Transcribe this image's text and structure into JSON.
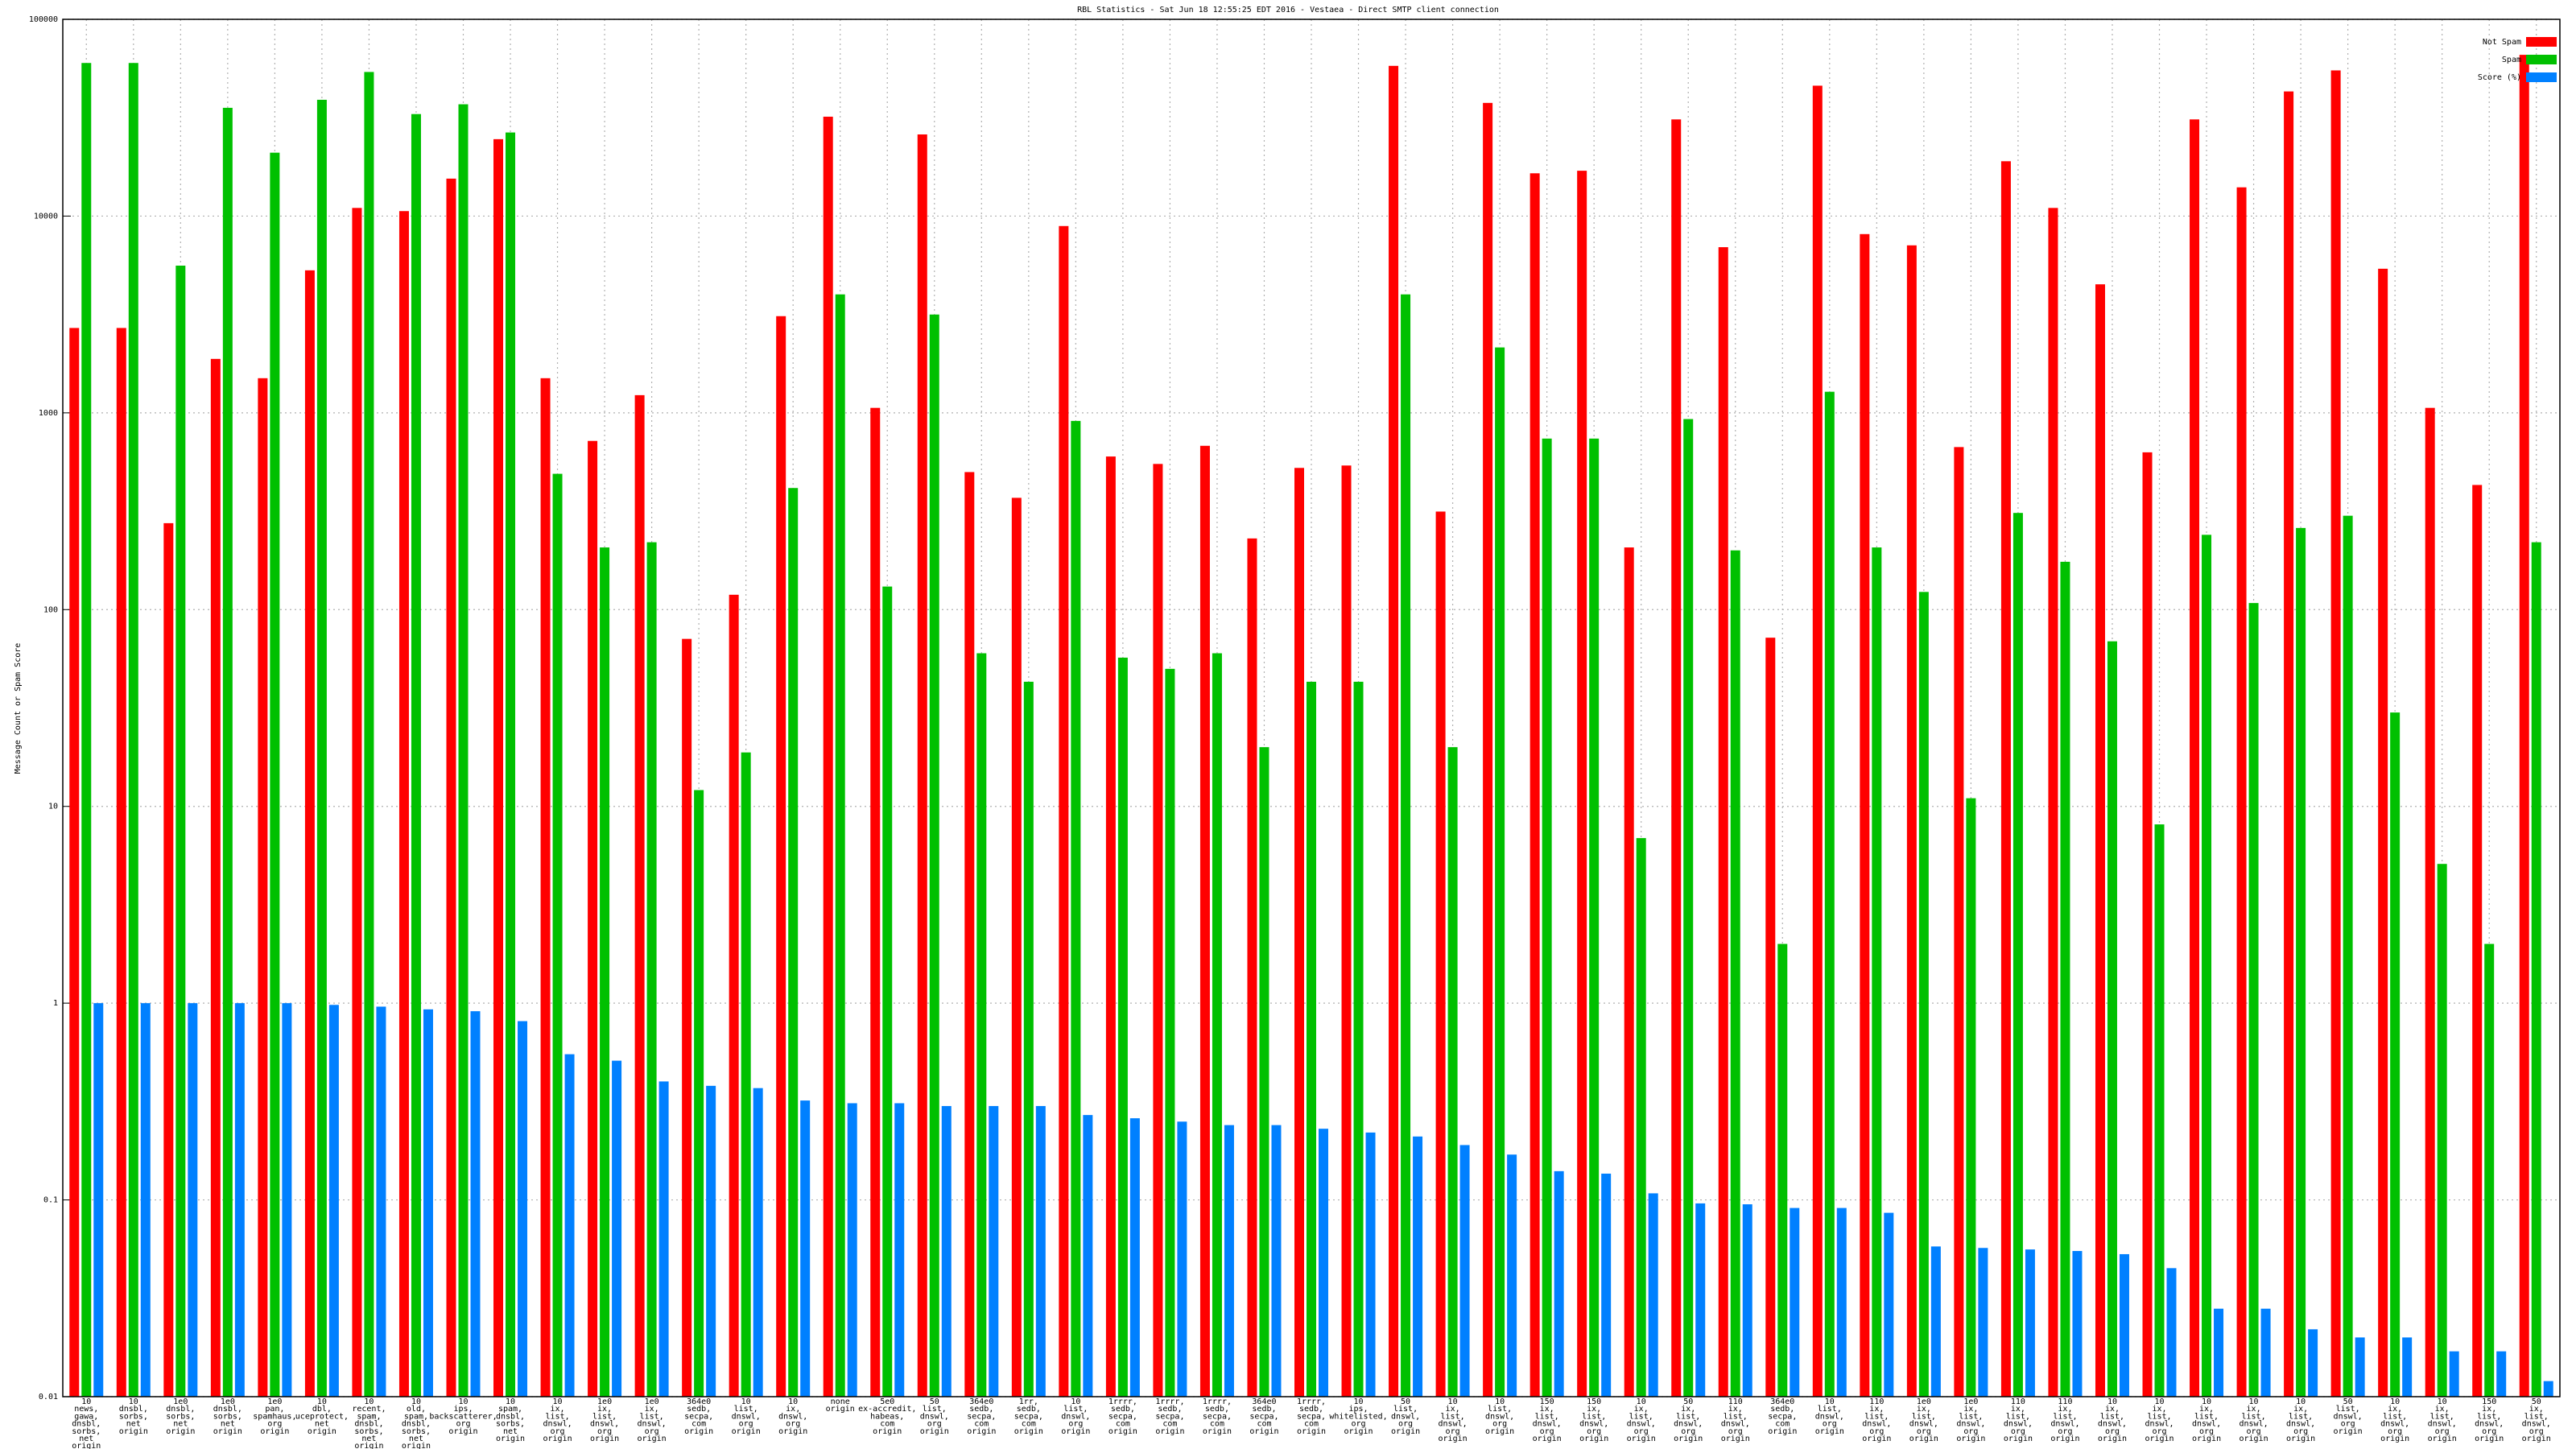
{
  "chart_data": {
    "type": "bar",
    "title": "RBL Statistics - Sat Jun 18 12:55:25 EDT 2016 - Vestaea - Direct SMTP client connection",
    "y_label": "Message Count or Spam Score",
    "log_scale": true,
    "grid": true,
    "legend_position": "top-right",
    "ylim": [
      0.01,
      100000
    ],
    "yticks": [
      100000,
      10000,
      1000,
      100,
      10,
      1,
      0.1,
      0.01
    ],
    "categories": [
      [
        "10",
        "news,",
        "gawa,",
        "dnsbl,",
        "sorbs,",
        "net",
        "origin"
      ],
      [
        "10",
        "dnsbl,",
        "sorbs,",
        "net",
        "origin"
      ],
      [
        "1e0",
        "dnsbl,",
        "sorbs,",
        "net",
        "origin"
      ],
      [
        "1e0",
        "dnsbl,",
        "sorbs,",
        "net",
        "origin"
      ],
      [
        "1e0",
        "pan,",
        "spamhaus,",
        "org",
        "origin"
      ],
      [
        "10",
        "dbl,",
        "uceprotect,",
        "net",
        "origin"
      ],
      [
        "10",
        "recent,",
        "spam,",
        "dnsbl,",
        "sorbs,",
        "net",
        "origin"
      ],
      [
        "10",
        "old,",
        "spam,",
        "dnsbl,",
        "sorbs,",
        "net",
        "origin"
      ],
      [
        "10",
        "ips,",
        "backscatterer,",
        "org",
        "origin"
      ],
      [
        "10",
        "spam,",
        "dnsbl,",
        "sorbs,",
        "net",
        "origin"
      ],
      [
        "10",
        "ix,",
        "list,",
        "dnswl,",
        "org",
        "origin"
      ],
      [
        "1e0",
        "ix,",
        "list,",
        "dnswl,",
        "org",
        "origin"
      ],
      [
        "1e0",
        "ix,",
        "list,",
        "dnswl,",
        "org",
        "origin"
      ],
      [
        "364e0",
        "sedb,",
        "secpa,",
        "com",
        "origin"
      ],
      [
        "10",
        "list,",
        "dnswl,",
        "org",
        "origin"
      ],
      [
        "10",
        "ix,",
        "dnswl,",
        "org",
        "origin"
      ],
      [
        "none",
        "origin"
      ],
      [
        "5e0",
        "ex-accredit,",
        "habeas,",
        "com",
        "origin"
      ],
      [
        "50",
        "list,",
        "dnswl,",
        "org",
        "origin"
      ],
      [
        "364e0",
        "sedb,",
        "secpa,",
        "com",
        "origin"
      ],
      [
        "1rr,",
        "sedb,",
        "secpa,",
        "com",
        "origin"
      ],
      [
        "10",
        "list,",
        "dnswl,",
        "org",
        "origin"
      ],
      [
        "1rrrr,",
        "sedb,",
        "secpa,",
        "com",
        "origin"
      ],
      [
        "1rrrr,",
        "sedb,",
        "secpa,",
        "com",
        "origin"
      ],
      [
        "1rrrr,",
        "sedb,",
        "secpa,",
        "com",
        "origin"
      ],
      [
        "364e0",
        "sedb,",
        "secpa,",
        "com",
        "origin"
      ],
      [
        "1rrrr,",
        "sedb,",
        "secpa,",
        "com",
        "origin"
      ],
      [
        "10",
        "ips,",
        "whitelisted,",
        "org",
        "origin"
      ],
      [
        "50",
        "list,",
        "dnswl,",
        "org",
        "origin"
      ],
      [
        "10",
        "ix,",
        "list,",
        "dnswl,",
        "org",
        "origin"
      ],
      [
        "10",
        "list,",
        "dnswl,",
        "org",
        "origin"
      ],
      [
        "150",
        "ix,",
        "list,",
        "dnswl,",
        "org",
        "origin"
      ],
      [
        "150",
        "ix,",
        "list,",
        "dnswl,",
        "org",
        "origin"
      ],
      [
        "10",
        "ix,",
        "list,",
        "dnswl,",
        "org",
        "origin"
      ],
      [
        "50",
        "ix,",
        "list,",
        "dnswl,",
        "org",
        "origin"
      ],
      [
        "110",
        "ix,",
        "list,",
        "dnswl,",
        "org",
        "origin"
      ],
      [
        "364e0",
        "sedb,",
        "secpa,",
        "com",
        "origin"
      ],
      [
        "10",
        "list,",
        "dnswl,",
        "org",
        "origin"
      ],
      [
        "110",
        "ix,",
        "list,",
        "dnswl,",
        "org",
        "origin"
      ],
      [
        "1e0",
        "ix,",
        "list,",
        "dnswl,",
        "org",
        "origin"
      ],
      [
        "1e0",
        "ix,",
        "list,",
        "dnswl,",
        "org",
        "origin"
      ],
      [
        "110",
        "ix,",
        "list,",
        "dnswl,",
        "org",
        "origin"
      ],
      [
        "110",
        "ix,",
        "list,",
        "dnswl,",
        "org",
        "origin"
      ],
      [
        "10",
        "ix,",
        "list,",
        "dnswl,",
        "org",
        "origin"
      ],
      [
        "10",
        "ix,",
        "list,",
        "dnswl,",
        "org",
        "origin"
      ],
      [
        "10",
        "ix,",
        "list,",
        "dnswl,",
        "org",
        "origin"
      ],
      [
        "10",
        "ix,",
        "list,",
        "dnswl,",
        "org",
        "origin"
      ],
      [
        "10",
        "ix,",
        "list,",
        "dnswl,",
        "org",
        "origin"
      ],
      [
        "50",
        "list,",
        "dnswl,",
        "org",
        "origin"
      ],
      [
        "10",
        "ix,",
        "list,",
        "dnswl,",
        "org",
        "origin"
      ],
      [
        "10",
        "ix,",
        "list,",
        "dnswl,",
        "org",
        "origin"
      ],
      [
        "150",
        "ix,",
        "list,",
        "dnswl,",
        "org",
        "origin"
      ],
      [
        "50",
        "ix,",
        "list,",
        "dnswl,",
        "org",
        "origin"
      ]
    ],
    "series": [
      {
        "name": "Not Spam",
        "color": "#ff0000",
        "values": [
          2700,
          2700,
          275,
          1880,
          1500,
          5300,
          11000,
          10600,
          15500,
          24600,
          1500,
          720,
          1230,
          71,
          119,
          3100,
          32000,
          1060,
          26000,
          500,
          370,
          8900,
          600,
          550,
          680,
          230,
          525,
          540,
          58000,
          315,
          37600,
          16500,
          17000,
          207,
          31000,
          6950,
          72,
          46000,
          8100,
          7100,
          670,
          19000,
          11000,
          4500,
          630,
          31000,
          14000,
          43000,
          55000,
          5400,
          1060,
          430,
          66000
        ]
      },
      {
        "name": "Spam",
        "color": "#00c000",
        "values": [
          60000,
          60000,
          5600,
          35500,
          21000,
          39000,
          54000,
          33000,
          37000,
          26600,
          490,
          207,
          220,
          12.1,
          18.8,
          415,
          4000,
          131,
          3160,
          60,
          43,
          910,
          57,
          50,
          60,
          20,
          43,
          43,
          4000,
          20,
          2150,
          740,
          740,
          6.9,
          930,
          200,
          2.0,
          1280,
          207,
          123,
          11,
          310,
          175,
          69,
          8.1,
          240,
          108,
          260,
          300,
          30,
          5.1,
          2.0,
          220
        ]
      },
      {
        "name": "Score (%)",
        "color": "#0080ff",
        "values": [
          1,
          1,
          1,
          1,
          1,
          0.98,
          0.96,
          0.93,
          0.91,
          0.81,
          0.55,
          0.51,
          0.4,
          0.38,
          0.37,
          0.32,
          0.31,
          0.31,
          0.3,
          0.3,
          0.3,
          0.27,
          0.26,
          0.25,
          0.24,
          0.24,
          0.23,
          0.22,
          0.21,
          0.19,
          0.17,
          0.14,
          0.136,
          0.108,
          0.096,
          0.095,
          0.091,
          0.091,
          0.086,
          0.058,
          0.057,
          0.056,
          0.055,
          0.053,
          0.045,
          0.028,
          0.028,
          0.022,
          0.02,
          0.02,
          0.017,
          0.017,
          0.012
        ]
      }
    ]
  }
}
